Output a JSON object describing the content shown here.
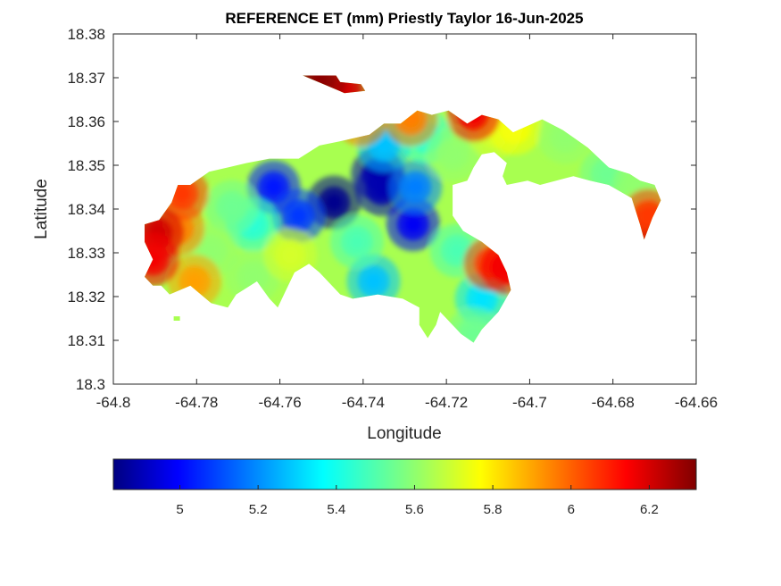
{
  "chart_data": {
    "type": "heatmap",
    "title": "REFERENCE ET (mm) Priestly Taylor 16-Jun-2025",
    "xlabel": "Longitude",
    "ylabel": "Latitude",
    "xlim": [
      -64.8,
      -64.66
    ],
    "ylim": [
      18.3,
      18.38
    ],
    "xticks": [
      -64.8,
      -64.78,
      -64.76,
      -64.74,
      -64.72,
      -64.7,
      -64.68,
      -64.66
    ],
    "xtick_labels": [
      "-64.8",
      "-64.78",
      "-64.76",
      "-64.74",
      "-64.72",
      "-64.7",
      "-64.68",
      "-64.66"
    ],
    "yticks": [
      18.3,
      18.31,
      18.32,
      18.33,
      18.34,
      18.35,
      18.36,
      18.37,
      18.38
    ],
    "ytick_labels": [
      "18.3",
      "18.31",
      "18.32",
      "18.33",
      "18.34",
      "18.35",
      "18.36",
      "18.37",
      "18.38"
    ],
    "colormap": "jet",
    "colorbar": {
      "orientation": "horizontal",
      "placement": "bottom",
      "range": [
        4.83,
        6.32
      ],
      "ticks": [
        5,
        5.2,
        5.4,
        5.6,
        5.8,
        6,
        6.2
      ],
      "tick_labels": [
        "5",
        "5.2",
        "5.4",
        "5.6",
        "5.8",
        "6",
        "6.2"
      ]
    },
    "grid": false,
    "land_outline": [
      [
        -64.7925,
        18.3365
      ],
      [
        -64.789,
        18.3375
      ],
      [
        -64.786,
        18.3415
      ],
      [
        -64.7845,
        18.3455
      ],
      [
        -64.7815,
        18.3455
      ],
      [
        -64.777,
        18.3485
      ],
      [
        -64.768,
        18.3505
      ],
      [
        -64.7625,
        18.3515
      ],
      [
        -64.7555,
        18.3515
      ],
      [
        -64.7505,
        18.3545
      ],
      [
        -64.7455,
        18.3555
      ],
      [
        -64.7385,
        18.357
      ],
      [
        -64.735,
        18.3595
      ],
      [
        -64.731,
        18.3595
      ],
      [
        -64.727,
        18.3625
      ],
      [
        -64.7235,
        18.3615
      ],
      [
        -64.7195,
        18.3625
      ],
      [
        -64.715,
        18.3595
      ],
      [
        -64.7115,
        18.3615
      ],
      [
        -64.7075,
        18.3605
      ],
      [
        -64.704,
        18.3575
      ],
      [
        -64.697,
        18.3605
      ],
      [
        -64.692,
        18.358
      ],
      [
        -64.686,
        18.354
      ],
      [
        -64.681,
        18.3495
      ],
      [
        -64.676,
        18.348
      ],
      [
        -64.6735,
        18.3465
      ],
      [
        -64.67,
        18.3455
      ],
      [
        -64.6685,
        18.342
      ],
      [
        -64.6705,
        18.338
      ],
      [
        -64.6725,
        18.333
      ],
      [
        -64.6735,
        18.3365
      ],
      [
        -64.6755,
        18.3425
      ],
      [
        -64.681,
        18.3455
      ],
      [
        -64.6855,
        18.3465
      ],
      [
        -64.6895,
        18.3475
      ],
      [
        -64.6975,
        18.3455
      ],
      [
        -64.7005,
        18.3465
      ],
      [
        -64.7055,
        18.3455
      ],
      [
        -64.7065,
        18.3475
      ],
      [
        -64.7055,
        18.3505
      ],
      [
        -64.7085,
        18.353
      ],
      [
        -64.7115,
        18.3525
      ],
      [
        -64.7135,
        18.3495
      ],
      [
        -64.715,
        18.3465
      ],
      [
        -64.7185,
        18.3455
      ],
      [
        -64.7185,
        18.3385
      ],
      [
        -64.716,
        18.335
      ],
      [
        -64.7115,
        18.3325
      ],
      [
        -64.7075,
        18.3295
      ],
      [
        -64.7055,
        18.3255
      ],
      [
        -64.7045,
        18.3215
      ],
      [
        -64.7075,
        18.3165
      ],
      [
        -64.7115,
        18.3125
      ],
      [
        -64.7135,
        18.3095
      ],
      [
        -64.7165,
        18.3115
      ],
      [
        -64.7195,
        18.3145
      ],
      [
        -64.7215,
        18.3165
      ],
      [
        -64.7225,
        18.3135
      ],
      [
        -64.7245,
        18.3105
      ],
      [
        -64.7265,
        18.3135
      ],
      [
        -64.7265,
        18.3175
      ],
      [
        -64.7305,
        18.3195
      ],
      [
        -64.7365,
        18.3205
      ],
      [
        -64.7425,
        18.3195
      ],
      [
        -64.7455,
        18.3205
      ],
      [
        -64.7505,
        18.3255
      ],
      [
        -64.753,
        18.3275
      ],
      [
        -64.7565,
        18.3255
      ],
      [
        -64.7605,
        18.3175
      ],
      [
        -64.7625,
        18.3195
      ],
      [
        -64.7655,
        18.3235
      ],
      [
        -64.7705,
        18.3205
      ],
      [
        -64.7725,
        18.3175
      ],
      [
        -64.7765,
        18.3185
      ],
      [
        -64.7815,
        18.3225
      ],
      [
        -64.7865,
        18.3205
      ],
      [
        -64.7885,
        18.3225
      ],
      [
        -64.7905,
        18.3225
      ],
      [
        -64.7925,
        18.3245
      ],
      [
        -64.7905,
        18.3285
      ],
      [
        -64.7925,
        18.3325
      ],
      [
        -64.7925,
        18.3365
      ]
    ],
    "land_outline_islands": [
      [
        [
          -64.7545,
          18.3705
        ],
        [
          -64.7465,
          18.3705
        ],
        [
          -64.7455,
          18.369
        ],
        [
          -64.7405,
          18.3685
        ],
        [
          -64.7395,
          18.367
        ],
        [
          -64.7445,
          18.3665
        ],
        [
          -64.7495,
          18.3685
        ],
        [
          -64.7545,
          18.3705
        ]
      ],
      [
        [
          -64.7855,
          18.3155
        ],
        [
          -64.784,
          18.3155
        ],
        [
          -64.784,
          18.3145
        ],
        [
          -64.7855,
          18.3145
        ],
        [
          -64.7855,
          18.3155
        ]
      ]
    ],
    "value_field": [
      {
        "x": -64.747,
        "y": 18.3415,
        "value": 4.85
      },
      {
        "x": -64.7355,
        "y": 18.3445,
        "value": 4.9
      },
      {
        "x": -64.7365,
        "y": 18.348,
        "value": 4.9
      },
      {
        "x": -64.728,
        "y": 18.3365,
        "value": 5.0
      },
      {
        "x": -64.7615,
        "y": 18.345,
        "value": 5.05
      },
      {
        "x": -64.7555,
        "y": 18.3385,
        "value": 5.1
      },
      {
        "x": -64.7275,
        "y": 18.345,
        "value": 5.2
      },
      {
        "x": -64.735,
        "y": 18.3545,
        "value": 5.3
      },
      {
        "x": -64.7375,
        "y": 18.3235,
        "value": 5.3
      },
      {
        "x": -64.7115,
        "y": 18.3195,
        "value": 5.35
      },
      {
        "x": -64.725,
        "y": 18.3565,
        "value": 5.45
      },
      {
        "x": -64.7665,
        "y": 18.3365,
        "value": 5.45
      },
      {
        "x": -64.7715,
        "y": 18.3405,
        "value": 5.55
      },
      {
        "x": -64.7175,
        "y": 18.3305,
        "value": 5.5
      },
      {
        "x": -64.7415,
        "y": 18.3325,
        "value": 5.5
      },
      {
        "x": -64.7185,
        "y": 18.3525,
        "value": 5.6
      },
      {
        "x": -64.7765,
        "y": 18.3305,
        "value": 5.6
      },
      {
        "x": -64.7665,
        "y": 18.3245,
        "value": 5.6
      },
      {
        "x": -64.7135,
        "y": 18.3115,
        "value": 5.55
      },
      {
        "x": -64.7575,
        "y": 18.3295,
        "value": 5.7
      },
      {
        "x": -64.7085,
        "y": 18.3575,
        "value": 5.7
      },
      {
        "x": -64.7035,
        "y": 18.3585,
        "value": 5.75
      },
      {
        "x": -64.6915,
        "y": 18.3565,
        "value": 5.6
      },
      {
        "x": -64.6815,
        "y": 18.348,
        "value": 5.55
      },
      {
        "x": -64.6735,
        "y": 18.3455,
        "value": 5.6
      },
      {
        "x": -64.7805,
        "y": 18.3235,
        "value": 5.9
      },
      {
        "x": -64.7845,
        "y": 18.3355,
        "value": 5.95
      },
      {
        "x": -64.7835,
        "y": 18.3435,
        "value": 6.05
      },
      {
        "x": -64.7405,
        "y": 18.3605,
        "value": 5.95
      },
      {
        "x": -64.7095,
        "y": 18.3275,
        "value": 6.05
      },
      {
        "x": -64.7055,
        "y": 18.3265,
        "value": 6.15
      },
      {
        "x": -64.7135,
        "y": 18.3615,
        "value": 6.15
      },
      {
        "x": -64.7285,
        "y": 18.3605,
        "value": 5.95
      },
      {
        "x": -64.7895,
        "y": 18.3345,
        "value": 6.2
      },
      {
        "x": -64.7905,
        "y": 18.3285,
        "value": 6.15
      },
      {
        "x": -64.7445,
        "y": 18.3675,
        "value": 6.2
      },
      {
        "x": -64.7505,
        "y": 18.3695,
        "value": 6.3
      },
      {
        "x": -64.6705,
        "y": 18.3345,
        "value": 6.25
      },
      {
        "x": -64.6715,
        "y": 18.3385,
        "value": 6.05
      }
    ]
  }
}
